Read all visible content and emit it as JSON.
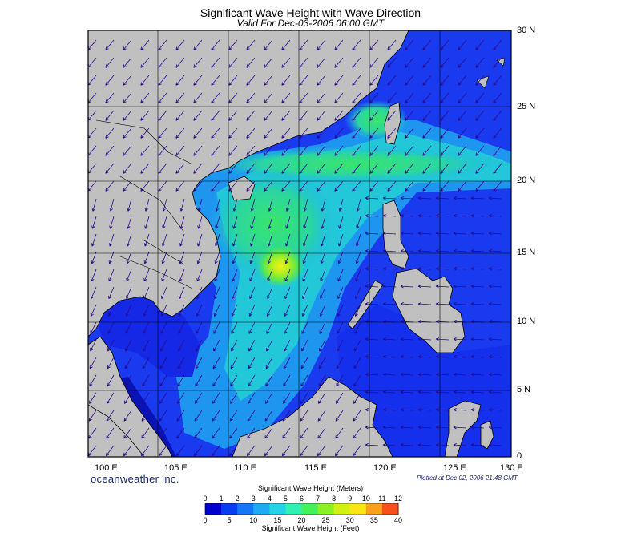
{
  "title": "Significant Wave Height with Wave Direction",
  "subtitle": "Valid For Dec-03-2006 06:00 GMT",
  "brand": "oceanweather inc.",
  "plotted": "Plotted at Dec 02, 2006 21:48 GMT",
  "lon_labels": [
    "100 E",
    "105 E",
    "110 E",
    "115 E",
    "120 E",
    "125 E",
    "130 E"
  ],
  "lat_labels": [
    "30 N",
    "25 N",
    "20 N",
    "15 N",
    "10 N",
    "5 N",
    "0"
  ],
  "colorbar": {
    "top_title": "Significant Wave Height (Meters)",
    "bottom_title": "Significant Wave Height (Feet)",
    "meters": [
      "0",
      "1",
      "2",
      "3",
      "4",
      "5",
      "6",
      "7",
      "8",
      "9",
      "10",
      "11",
      "12"
    ],
    "feet": [
      "0",
      "5",
      "10",
      "15",
      "20",
      "25",
      "30",
      "35",
      "40"
    ],
    "colors": [
      "#0000cd",
      "#0a3cf0",
      "#1478f5",
      "#1eaaf5",
      "#28d2e6",
      "#32f0b4",
      "#46f05a",
      "#8cf028",
      "#d2f014",
      "#fae614",
      "#faa01e",
      "#f5501e",
      "#e60f14"
    ]
  },
  "colors": {
    "land": "#c0c0c0",
    "deep": "#1a3af0",
    "mid": "#1ea8f0",
    "high": "#3ae66a",
    "peak": "#e8f020",
    "arrow": "#2a0a8a"
  }
}
